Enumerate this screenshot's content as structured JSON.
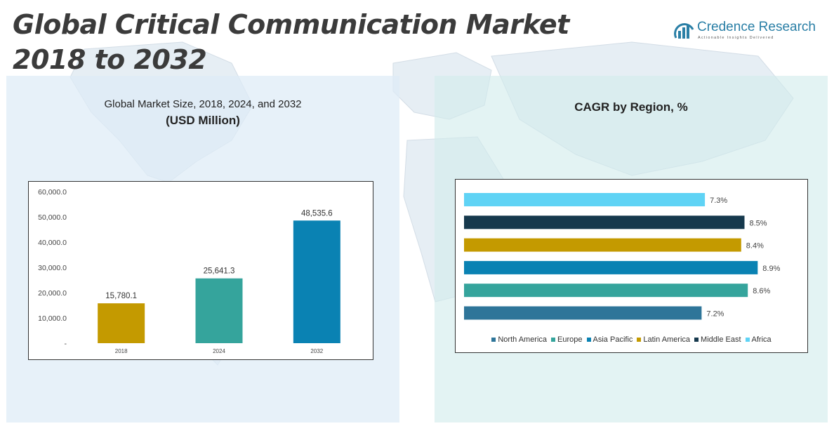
{
  "title": "Global Critical Communication Market 2018 to 2032",
  "logo": {
    "name": "Credence Research",
    "tagline": "Actionable Insights Delivered"
  },
  "left_panel": {
    "title_line1": "Global Market Size, 2018, 2024, and 2032",
    "title_line2": "(USD Million)"
  },
  "right_panel": {
    "title": "CAGR by Region, %"
  },
  "chart_data": [
    {
      "type": "bar",
      "title": "Global Market Size, 2018, 2024, and 2032 (USD Million)",
      "categories": [
        "2018",
        "2024",
        "2032"
      ],
      "values": [
        15780.1,
        25641.3,
        48535.6
      ],
      "data_labels": [
        "15,780.1",
        "25,641.3",
        "48,535.6"
      ],
      "colors": [
        "#c49a00",
        "#35a49c",
        "#0a82b3"
      ],
      "ylim": [
        0,
        60000
      ],
      "yticks": [
        0,
        10000,
        20000,
        30000,
        40000,
        50000,
        60000
      ],
      "ytick_labels": [
        "-",
        "10,000.0",
        "20,000.0",
        "30,000.0",
        "40,000.0",
        "50,000.0",
        "60,000.0"
      ],
      "grid": false
    },
    {
      "type": "bar",
      "orientation": "horizontal",
      "title": "CAGR by Region, %",
      "series": [
        {
          "name": "North America",
          "value": 7.2,
          "label": "7.2%",
          "color": "#2e7599"
        },
        {
          "name": "Europe",
          "value": 8.6,
          "label": "8.6%",
          "color": "#35a49c"
        },
        {
          "name": "Asia Pacific",
          "value": 8.9,
          "label": "8.9%",
          "color": "#0a82b3"
        },
        {
          "name": "Latin America",
          "value": 8.4,
          "label": "8.4%",
          "color": "#c49a00"
        },
        {
          "name": "Middle East",
          "value": 8.5,
          "label": "8.5%",
          "color": "#16394d"
        },
        {
          "name": "Africa",
          "value": 7.3,
          "label": "7.3%",
          "color": "#5fd3f5"
        }
      ],
      "xlim": [
        0,
        10
      ],
      "legend_position": "bottom",
      "grid": false
    }
  ]
}
